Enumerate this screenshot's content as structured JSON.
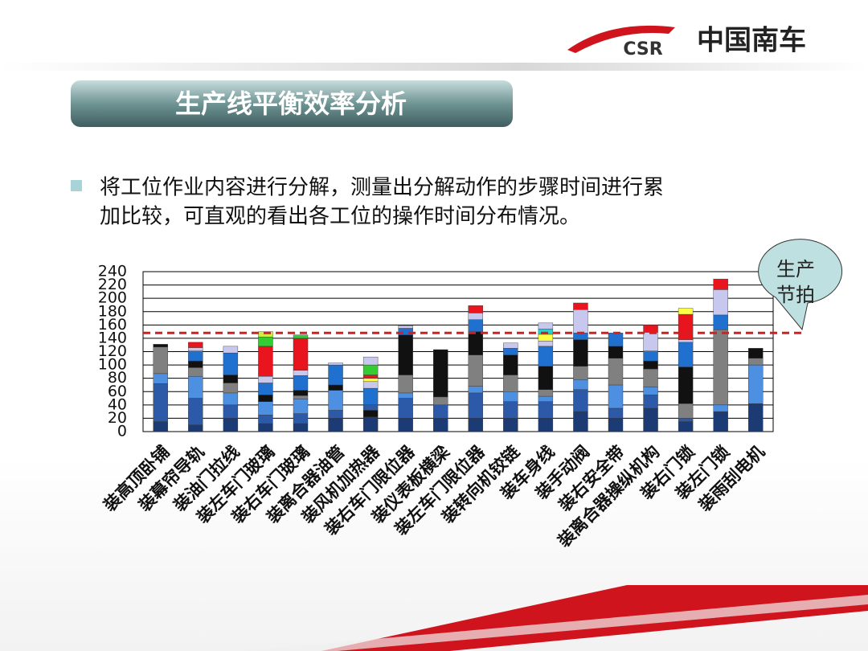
{
  "header": {
    "logo_text": "CSR",
    "company": "中国南车"
  },
  "slide_title": "生产线平衡效率分析",
  "bullet_lines": [
    "将工位作业内容进行分解，测量出分解动作的步骤时间进行累",
    "加比较，可直观的看出各工位的操作时间分布情况。"
  ],
  "chart_data": {
    "type": "stacked-bar",
    "categories": [
      "装高顶卧铺",
      "装幕帘导轨",
      "装油门拉线",
      "装左车门玻璃",
      "装右车门玻璃",
      "装离合器油管",
      "装风机加热器",
      "装右车门限位器",
      "装仪表板横梁",
      "装左车门限位器",
      "装转向机铰链",
      "装车身线",
      "装手动阀",
      "装右安全带",
      "装离合器操纵机构",
      "装右门锁",
      "装左门锁",
      "装雨刮电机"
    ],
    "segments": [
      [
        {
          "value": 15,
          "color": "#1c3a73"
        },
        {
          "value": 57,
          "color": "#2d5aa8"
        },
        {
          "value": 15,
          "color": "#4d8fe0"
        },
        {
          "value": 40,
          "color": "#808080"
        },
        {
          "value": 4,
          "color": "#111111"
        }
      ],
      [
        {
          "value": 10,
          "color": "#1c3a73"
        },
        {
          "value": 40,
          "color": "#2d5aa8"
        },
        {
          "value": 33,
          "color": "#4d8fe0"
        },
        {
          "value": 13,
          "color": "#808080"
        },
        {
          "value": 10,
          "color": "#111111"
        },
        {
          "value": 15,
          "color": "#2070d0"
        },
        {
          "value": 5,
          "color": "#c8c8ee"
        },
        {
          "value": 8,
          "color": "#e8141e"
        }
      ],
      [
        {
          "value": 20,
          "color": "#1c3a73"
        },
        {
          "value": 20,
          "color": "#2d5aa8"
        },
        {
          "value": 18,
          "color": "#4d8fe0"
        },
        {
          "value": 15,
          "color": "#808080"
        },
        {
          "value": 12,
          "color": "#111111"
        },
        {
          "value": 33,
          "color": "#2070d0"
        },
        {
          "value": 10,
          "color": "#c8c8ee"
        }
      ],
      [
        {
          "value": 12,
          "color": "#1c3a73"
        },
        {
          "value": 13,
          "color": "#2d5aa8"
        },
        {
          "value": 20,
          "color": "#4d8fe0"
        },
        {
          "value": 10,
          "color": "#111111"
        },
        {
          "value": 18,
          "color": "#2070d0"
        },
        {
          "value": 10,
          "color": "#c8c8ee"
        },
        {
          "value": 45,
          "color": "#e8141e"
        },
        {
          "value": 14,
          "color": "#33cc33"
        },
        {
          "value": 8,
          "color": "#ccee44"
        }
      ],
      [
        {
          "value": 12,
          "color": "#1c3a73"
        },
        {
          "value": 15,
          "color": "#2d5aa8"
        },
        {
          "value": 22,
          "color": "#4d8fe0"
        },
        {
          "value": 5,
          "color": "#808080"
        },
        {
          "value": 8,
          "color": "#111111"
        },
        {
          "value": 22,
          "color": "#2070d0"
        },
        {
          "value": 8,
          "color": "#c8c8ee"
        },
        {
          "value": 48,
          "color": "#e8141e"
        },
        {
          "value": 5,
          "color": "#33cc33"
        }
      ],
      [
        {
          "value": 20,
          "color": "#1c3a73"
        },
        {
          "value": 12,
          "color": "#2d5aa8"
        },
        {
          "value": 30,
          "color": "#4d8fe0"
        },
        {
          "value": 8,
          "color": "#111111"
        },
        {
          "value": 30,
          "color": "#2070d0"
        },
        {
          "value": 3,
          "color": "#c8c8ee"
        }
      ],
      [
        {
          "value": 22,
          "color": "#1c3a73"
        },
        {
          "value": 10,
          "color": "#111111"
        },
        {
          "value": 8,
          "color": "#2d5aa8"
        },
        {
          "value": 25,
          "color": "#2070d0"
        },
        {
          "value": 10,
          "color": "#c8c8ee"
        },
        {
          "value": 5,
          "color": "#ffff44"
        },
        {
          "value": 5,
          "color": "#e8141e"
        },
        {
          "value": 15,
          "color": "#33cc33"
        },
        {
          "value": 12,
          "color": "#c8c8ee"
        }
      ],
      [
        {
          "value": 20,
          "color": "#1c3a73"
        },
        {
          "value": 30,
          "color": "#2d5aa8"
        },
        {
          "value": 8,
          "color": "#4d8fe0"
        },
        {
          "value": 27,
          "color": "#808080"
        },
        {
          "value": 60,
          "color": "#111111"
        },
        {
          "value": 10,
          "color": "#2070d0"
        },
        {
          "value": 4,
          "color": "#c8c8ee"
        }
      ],
      [
        {
          "value": 20,
          "color": "#1c3a73"
        },
        {
          "value": 20,
          "color": "#2d5aa8"
        },
        {
          "value": 12,
          "color": "#808080"
        },
        {
          "value": 71,
          "color": "#111111"
        }
      ],
      [
        {
          "value": 20,
          "color": "#1c3a73"
        },
        {
          "value": 38,
          "color": "#2d5aa8"
        },
        {
          "value": 10,
          "color": "#4d8fe0"
        },
        {
          "value": 47,
          "color": "#808080"
        },
        {
          "value": 35,
          "color": "#111111"
        },
        {
          "value": 18,
          "color": "#2070d0"
        },
        {
          "value": 10,
          "color": "#c8c8ee"
        },
        {
          "value": 11,
          "color": "#e8141e"
        }
      ],
      [
        {
          "value": 20,
          "color": "#1c3a73"
        },
        {
          "value": 25,
          "color": "#2d5aa8"
        },
        {
          "value": 15,
          "color": "#4d8fe0"
        },
        {
          "value": 25,
          "color": "#808080"
        },
        {
          "value": 30,
          "color": "#111111"
        },
        {
          "value": 10,
          "color": "#2070d0"
        },
        {
          "value": 8,
          "color": "#c8c8ee"
        }
      ],
      [
        {
          "value": 20,
          "color": "#1c3a73"
        },
        {
          "value": 25,
          "color": "#2d5aa8"
        },
        {
          "value": 8,
          "color": "#4d8fe0"
        },
        {
          "value": 10,
          "color": "#808080"
        },
        {
          "value": 35,
          "color": "#111111"
        },
        {
          "value": 30,
          "color": "#2070d0"
        },
        {
          "value": 8,
          "color": "#c8c8ee"
        },
        {
          "value": 10,
          "color": "#ffff44"
        },
        {
          "value": 8,
          "color": "#33cccc"
        },
        {
          "value": 9,
          "color": "#c8c8ee"
        }
      ],
      [
        {
          "value": 30,
          "color": "#1c3a73"
        },
        {
          "value": 33,
          "color": "#2d5aa8"
        },
        {
          "value": 15,
          "color": "#4d8fe0"
        },
        {
          "value": 20,
          "color": "#808080"
        },
        {
          "value": 40,
          "color": "#111111"
        },
        {
          "value": 10,
          "color": "#2070d0"
        },
        {
          "value": 35,
          "color": "#c8c8ee"
        },
        {
          "value": 10,
          "color": "#e8141e"
        }
      ],
      [
        {
          "value": 20,
          "color": "#1c3a73"
        },
        {
          "value": 15,
          "color": "#2d5aa8"
        },
        {
          "value": 35,
          "color": "#4d8fe0"
        },
        {
          "value": 40,
          "color": "#808080"
        },
        {
          "value": 18,
          "color": "#111111"
        },
        {
          "value": 20,
          "color": "#2070d0"
        }
      ],
      [
        {
          "value": 35,
          "color": "#1c3a73"
        },
        {
          "value": 20,
          "color": "#2d5aa8"
        },
        {
          "value": 12,
          "color": "#4d8fe0"
        },
        {
          "value": 27,
          "color": "#808080"
        },
        {
          "value": 12,
          "color": "#111111"
        },
        {
          "value": 15,
          "color": "#2070d0"
        },
        {
          "value": 28,
          "color": "#c8c8ee"
        },
        {
          "value": 11,
          "color": "#e8141e"
        }
      ],
      [
        {
          "value": 15,
          "color": "#1c3a73"
        },
        {
          "value": 5,
          "color": "#2d5aa8"
        },
        {
          "value": 22,
          "color": "#808080"
        },
        {
          "value": 55,
          "color": "#111111"
        },
        {
          "value": 37,
          "color": "#2070d0"
        },
        {
          "value": 4,
          "color": "#c8c8ee"
        },
        {
          "value": 38,
          "color": "#e8141e"
        },
        {
          "value": 9,
          "color": "#ffff44"
        }
      ],
      [
        {
          "value": 30,
          "color": "#1c3a73"
        },
        {
          "value": 10,
          "color": "#4d8fe0"
        },
        {
          "value": 113,
          "color": "#808080"
        },
        {
          "value": 22,
          "color": "#2070d0"
        },
        {
          "value": 38,
          "color": "#c8c8ee"
        },
        {
          "value": 16,
          "color": "#e8141e"
        }
      ],
      [
        {
          "value": 42,
          "color": "#1c3a73"
        },
        {
          "value": 58,
          "color": "#4d8fe0"
        },
        {
          "value": 10,
          "color": "#808080"
        },
        {
          "value": 15,
          "color": "#111111"
        }
      ]
    ],
    "ylim": [
      0,
      240
    ],
    "yticks": [
      0,
      20,
      40,
      60,
      80,
      100,
      120,
      140,
      160,
      180,
      200,
      220,
      240
    ],
    "grid": true,
    "reference_line": {
      "value": 148,
      "color": "#cc2222"
    },
    "annotation_lines": [
      "生产",
      "节拍"
    ]
  }
}
